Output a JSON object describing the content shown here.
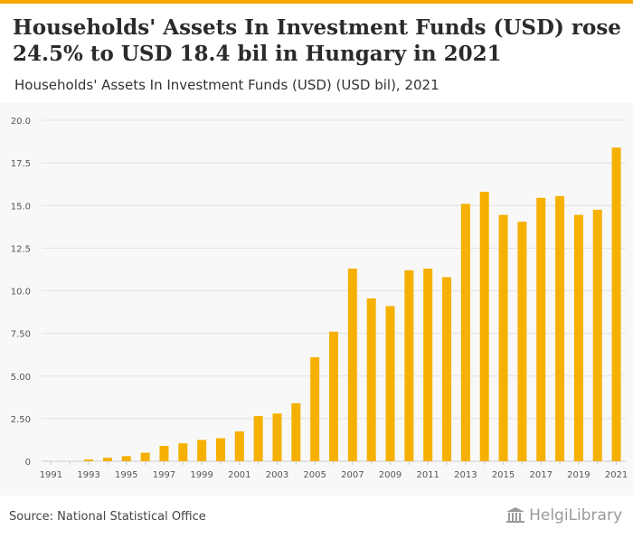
{
  "header": {
    "title": "Households' Assets In Investment Funds (USD) rose 24.5% to USD 18.4 bil in Hungary in 2021",
    "subtitle": "Households' Assets In Investment Funds (USD) (USD bil), 2021"
  },
  "footer": {
    "source": "Source: National Statistical Office",
    "brand": "HelgiLibrary"
  },
  "colors": {
    "accent": "#f5a700",
    "bar": "#f5b000",
    "grid": "#e2e2e2"
  },
  "chart_data": {
    "type": "bar",
    "title": "Households' Assets In Investment Funds (USD) (USD bil), 2021",
    "xlabel": "",
    "ylabel": "USD bil",
    "ylim": [
      0,
      20
    ],
    "yticks": [
      0,
      2.5,
      5,
      7.5,
      10,
      12.5,
      15,
      17.5,
      20
    ],
    "ytick_labels": [
      "0",
      "2.50",
      "5.00",
      "7.50",
      "10.0",
      "12.5",
      "15.0",
      "17.5",
      "20.0"
    ],
    "categories": [
      "1991",
      "1992",
      "1993",
      "1994",
      "1995",
      "1996",
      "1997",
      "1998",
      "1999",
      "2000",
      "2001",
      "2002",
      "2003",
      "2004",
      "2005",
      "2006",
      "2007",
      "2008",
      "2009",
      "2010",
      "2011",
      "2012",
      "2013",
      "2014",
      "2015",
      "2016",
      "2017",
      "2018",
      "2019",
      "2020",
      "2021"
    ],
    "xtick_labels": [
      "1991",
      "1993",
      "1995",
      "1997",
      "1999",
      "2001",
      "2003",
      "2005",
      "2007",
      "2009",
      "2011",
      "2013",
      "2015",
      "2017",
      "2019",
      "2021"
    ],
    "values": [
      0,
      0,
      0.1,
      0.2,
      0.3,
      0.5,
      0.9,
      1.05,
      1.25,
      1.35,
      1.75,
      2.65,
      2.8,
      3.4,
      6.1,
      7.6,
      11.3,
      9.55,
      9.1,
      11.2,
      11.3,
      10.8,
      15.1,
      15.8,
      14.45,
      14.05,
      15.45,
      15.55,
      14.45,
      14.75,
      18.4
    ],
    "grid": true,
    "legend": "none"
  }
}
